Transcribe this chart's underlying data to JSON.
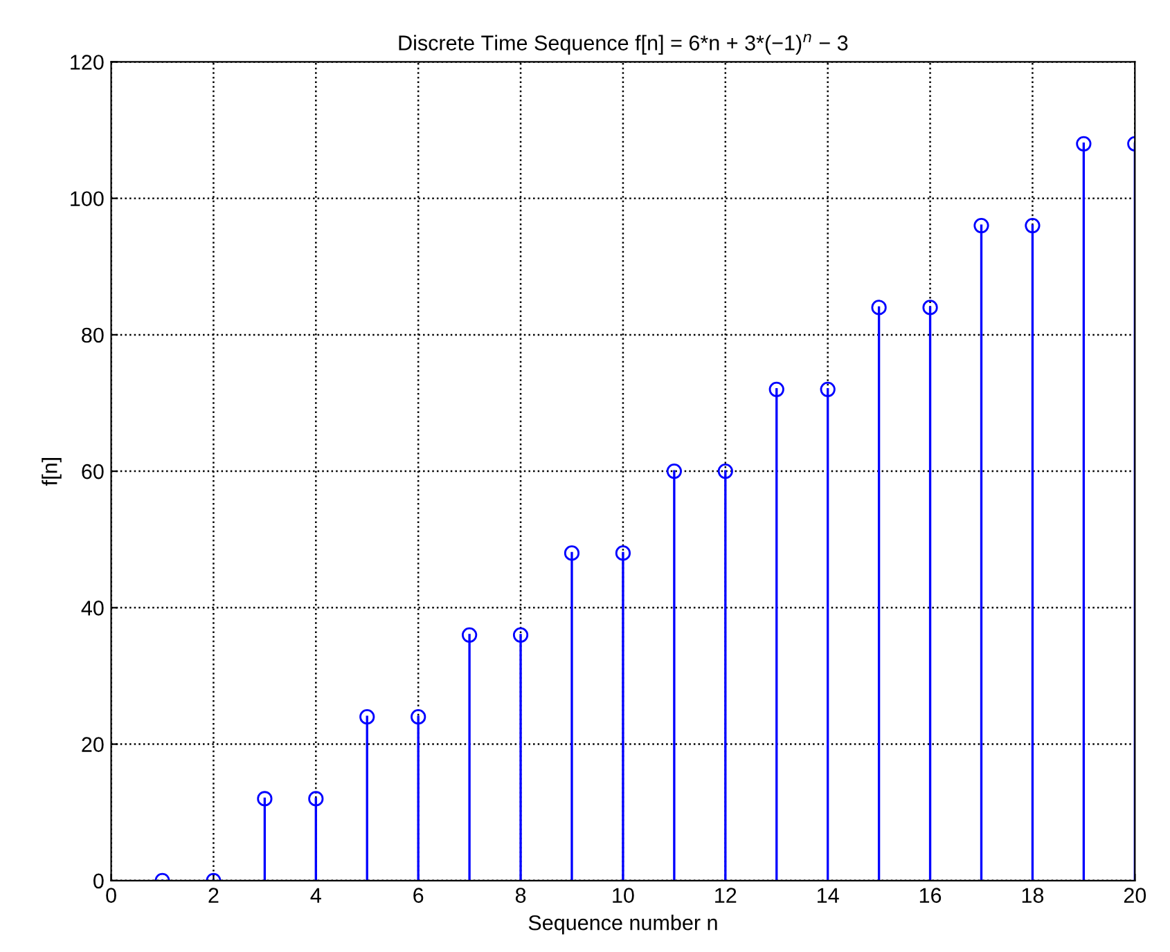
{
  "chart_data": {
    "type": "lollipop",
    "title": "Discrete Time Sequence f[n] = 6*n + 3*(−1)$^{n}$ − 3",
    "xlabel": "Sequence number n",
    "ylabel": "f[n]",
    "x": [
      1,
      2,
      3,
      4,
      5,
      6,
      7,
      8,
      9,
      10,
      11,
      12,
      13,
      14,
      15,
      16,
      17,
      18,
      19,
      20
    ],
    "series": [
      {
        "color": "#0000ff",
        "values": [
          0,
          0,
          12,
          12,
          24,
          24,
          36,
          36,
          48,
          48,
          60,
          60,
          72,
          72,
          84,
          84,
          96,
          96,
          108,
          108
        ]
      }
    ],
    "xlim": [
      0,
      20
    ],
    "xticks": [
      0,
      2,
      4,
      6,
      8,
      10,
      12,
      14,
      16,
      18,
      20
    ],
    "ylim": [
      0,
      120
    ],
    "yticks": [
      0,
      20,
      40,
      60,
      80,
      100,
      120
    ],
    "grid": true,
    "marker": "circle",
    "line_style": "solid"
  }
}
